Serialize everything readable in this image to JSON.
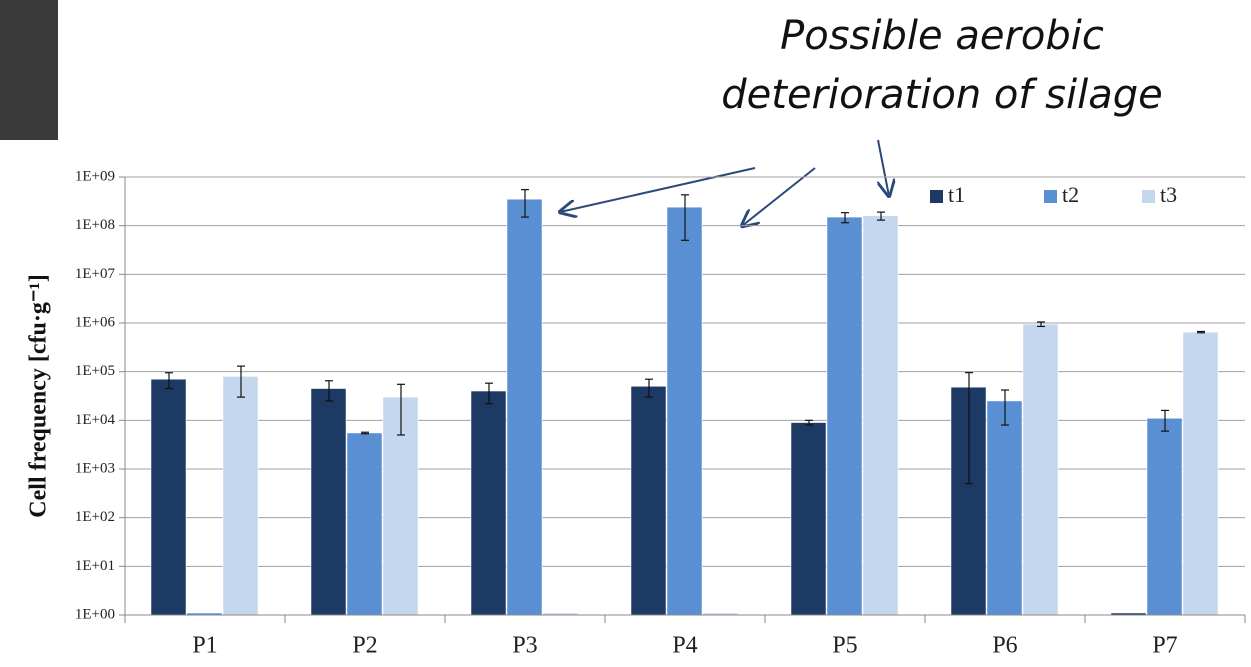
{
  "chart_data": {
    "type": "bar",
    "log_scale": true,
    "grid": true,
    "legend_position": "top-right",
    "y_label": "Cell frequency [cfu·g⁻¹]",
    "annotation": [
      "Possible aerobic",
      "deterioration of silage"
    ],
    "categories": [
      "P1",
      "P2",
      "P3",
      "P4",
      "P5",
      "P6",
      "P7"
    ],
    "series": [
      {
        "name": "t1",
        "color": "#1c3a63",
        "values": [
          70000,
          45000,
          40000,
          50000,
          9000,
          48000,
          1
        ],
        "errors": [
          25000,
          20000,
          18000,
          20000,
          1000,
          47500,
          0
        ]
      },
      {
        "name": "t2",
        "color": "#5b8fd4",
        "values": [
          1,
          5500,
          350000000,
          240000000,
          150000000,
          25000,
          11000
        ],
        "errors": [
          0,
          200,
          200000000,
          190000000,
          35000000,
          17000,
          5000
        ]
      },
      {
        "name": "t3",
        "color": "#c5d7ef",
        "values": [
          80000,
          30000,
          1,
          1,
          160000000,
          950000,
          650000
        ],
        "errors": [
          50000,
          25000,
          0,
          0,
          30000000,
          100000,
          20000
        ]
      }
    ],
    "ylim": [
      1,
      1000000000
    ],
    "yticks": [
      {
        "value": 1,
        "label": "1E+00"
      },
      {
        "value": 10,
        "label": "1E+01"
      },
      {
        "value": 100,
        "label": "1E+02"
      },
      {
        "value": 1000,
        "label": "1E+03"
      },
      {
        "value": 10000,
        "label": "1E+04"
      },
      {
        "value": 100000,
        "label": "1E+05"
      },
      {
        "value": 1000000,
        "label": "1E+06"
      },
      {
        "value": 10000000,
        "label": "1E+07"
      },
      {
        "value": 100000000,
        "label": "1E+08"
      },
      {
        "value": 1000000000,
        "label": "1E+09"
      }
    ]
  }
}
